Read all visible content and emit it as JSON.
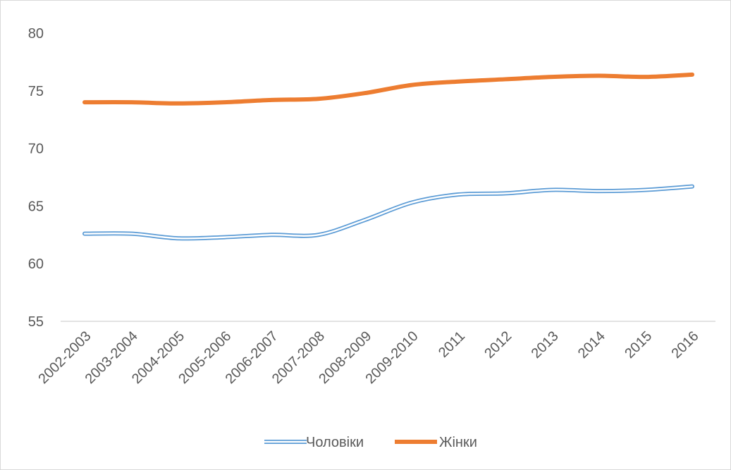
{
  "chart_data": {
    "type": "line",
    "categories": [
      "2002-2003",
      "2003-2004",
      "2004-2005",
      "2005-2006",
      "2006-2007",
      "2007-2008",
      "2008-2009",
      "2009-2010",
      "2011",
      "2012",
      "2013",
      "2014",
      "2015",
      "2016"
    ],
    "series": [
      {
        "name": "Чоловіки",
        "values": [
          62.6,
          62.6,
          62.2,
          62.3,
          62.5,
          62.5,
          63.8,
          65.3,
          66.0,
          66.1,
          66.4,
          66.3,
          66.4,
          66.7
        ],
        "color": "#5b9bd5",
        "style": "double-line"
      },
      {
        "name": "Жінки",
        "values": [
          74.0,
          74.0,
          73.9,
          74.0,
          74.2,
          74.3,
          74.8,
          75.5,
          75.8,
          76.0,
          76.2,
          76.3,
          76.2,
          76.4
        ],
        "color": "#ed7d31",
        "style": "solid"
      }
    ],
    "yticks": [
      55,
      60,
      65,
      70,
      75,
      80
    ],
    "ylim": [
      55,
      80
    ],
    "title": "",
    "xlabel": "",
    "ylabel": "",
    "grid": false,
    "legend_position": "bottom"
  }
}
